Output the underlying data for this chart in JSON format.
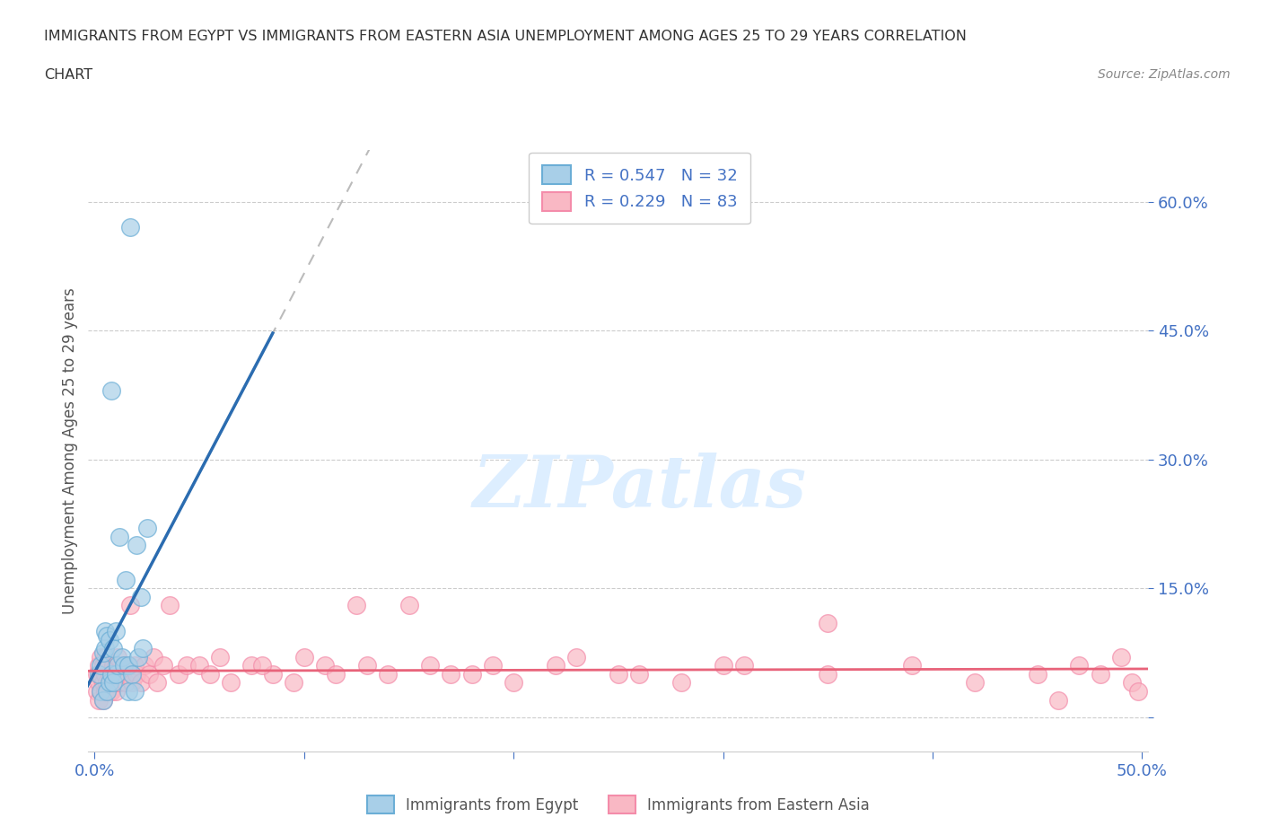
{
  "title_line1": "IMMIGRANTS FROM EGYPT VS IMMIGRANTS FROM EASTERN ASIA UNEMPLOYMENT AMONG AGES 25 TO 29 YEARS CORRELATION",
  "title_line2": "CHART",
  "source": "Source: ZipAtlas.com",
  "ylabel": "Unemployment Among Ages 25 to 29 years",
  "xlim": [
    -0.003,
    0.503
  ],
  "ylim": [
    -0.04,
    0.66
  ],
  "yticks": [
    0.0,
    0.15,
    0.3,
    0.45,
    0.6
  ],
  "ytick_labels": [
    "",
    "15.0%",
    "30.0%",
    "45.0%",
    "60.0%"
  ],
  "xticks": [
    0.0,
    0.1,
    0.2,
    0.3,
    0.4,
    0.5
  ],
  "xtick_labels": [
    "0.0%",
    "",
    "",
    "",
    "",
    "50.0%"
  ],
  "egypt_R": 0.547,
  "egypt_N": 32,
  "eastern_asia_R": 0.229,
  "eastern_asia_N": 83,
  "egypt_color": "#a8cfe8",
  "egypt_edge_color": "#6baed6",
  "egypt_line_color": "#2b6cb0",
  "eastern_asia_color": "#f9b8c4",
  "eastern_asia_edge_color": "#f48caa",
  "eastern_asia_line_color": "#e8637a",
  "tick_color": "#4472c4",
  "watermark_color": "#d0dff0",
  "watermark_text_color": "#c8d8ee",
  "egypt_x": [
    0.002,
    0.003,
    0.003,
    0.004,
    0.004,
    0.005,
    0.005,
    0.006,
    0.006,
    0.007,
    0.007,
    0.008,
    0.008,
    0.009,
    0.009,
    0.01,
    0.01,
    0.011,
    0.012,
    0.013,
    0.014,
    0.015,
    0.016,
    0.016,
    0.017,
    0.018,
    0.019,
    0.02,
    0.021,
    0.022,
    0.023,
    0.025
  ],
  "egypt_y": [
    0.05,
    0.03,
    0.06,
    0.02,
    0.075,
    0.08,
    0.1,
    0.03,
    0.095,
    0.04,
    0.09,
    0.05,
    0.38,
    0.04,
    0.08,
    0.05,
    0.1,
    0.06,
    0.21,
    0.07,
    0.06,
    0.16,
    0.03,
    0.06,
    0.57,
    0.05,
    0.03,
    0.2,
    0.07,
    0.14,
    0.08,
    0.22
  ],
  "eastern_asia_x": [
    0.001,
    0.001,
    0.002,
    0.002,
    0.002,
    0.003,
    0.003,
    0.003,
    0.004,
    0.004,
    0.004,
    0.005,
    0.005,
    0.005,
    0.006,
    0.006,
    0.006,
    0.007,
    0.007,
    0.008,
    0.008,
    0.009,
    0.009,
    0.01,
    0.01,
    0.011,
    0.011,
    0.012,
    0.013,
    0.014,
    0.015,
    0.016,
    0.017,
    0.018,
    0.019,
    0.02,
    0.022,
    0.024,
    0.026,
    0.028,
    0.03,
    0.033,
    0.036,
    0.04,
    0.044,
    0.05,
    0.055,
    0.06,
    0.065,
    0.075,
    0.085,
    0.095,
    0.11,
    0.125,
    0.14,
    0.16,
    0.18,
    0.2,
    0.22,
    0.25,
    0.28,
    0.31,
    0.35,
    0.39,
    0.42,
    0.45,
    0.46,
    0.47,
    0.48,
    0.49,
    0.495,
    0.498,
    0.35,
    0.3,
    0.26,
    0.23,
    0.19,
    0.17,
    0.15,
    0.13,
    0.115,
    0.1,
    0.08
  ],
  "eastern_asia_y": [
    0.03,
    0.05,
    0.02,
    0.04,
    0.06,
    0.03,
    0.05,
    0.07,
    0.02,
    0.04,
    0.06,
    0.03,
    0.05,
    0.07,
    0.03,
    0.04,
    0.06,
    0.03,
    0.05,
    0.03,
    0.05,
    0.04,
    0.06,
    0.03,
    0.06,
    0.04,
    0.07,
    0.04,
    0.05,
    0.06,
    0.04,
    0.06,
    0.13,
    0.04,
    0.06,
    0.05,
    0.04,
    0.06,
    0.05,
    0.07,
    0.04,
    0.06,
    0.13,
    0.05,
    0.06,
    0.06,
    0.05,
    0.07,
    0.04,
    0.06,
    0.05,
    0.04,
    0.06,
    0.13,
    0.05,
    0.06,
    0.05,
    0.04,
    0.06,
    0.05,
    0.04,
    0.06,
    0.05,
    0.06,
    0.04,
    0.05,
    0.02,
    0.06,
    0.05,
    0.07,
    0.04,
    0.03,
    0.11,
    0.06,
    0.05,
    0.07,
    0.06,
    0.05,
    0.13,
    0.06,
    0.05,
    0.07,
    0.06
  ]
}
